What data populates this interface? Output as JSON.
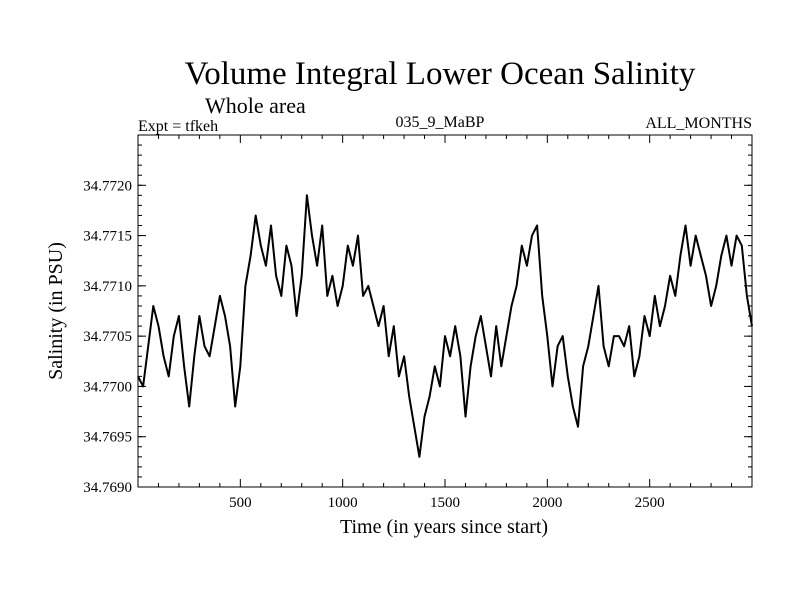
{
  "chart_data": {
    "type": "line",
    "title": "Volume Integral Lower Ocean Salinity",
    "subtitle": "Whole area",
    "left_note": "Expt = tfkeh",
    "center_note": "035_9_MaBP",
    "right_note": "ALL_MONTHS",
    "xlabel": "Time (in years since start)",
    "ylabel": "Salinity (in PSU)",
    "xlim": [
      0,
      3000
    ],
    "ylim": [
      34.769,
      34.7725
    ],
    "xticks": [
      500,
      1000,
      1500,
      2000,
      2500
    ],
    "xtick_labels": [
      "500",
      "1000",
      "1500",
      "2000",
      "2500"
    ],
    "yticks": [
      34.769,
      34.7695,
      34.77,
      34.7705,
      34.771,
      34.7715,
      34.772
    ],
    "ytick_labels": [
      "34.7690",
      "34.7695",
      "34.7700",
      "34.7705",
      "34.7710",
      "34.7715",
      "34.7720"
    ],
    "grid": false,
    "series": [
      {
        "x": [
          0,
          25,
          50,
          75,
          100,
          125,
          150,
          175,
          200,
          225,
          250,
          275,
          300,
          325,
          350,
          375,
          400,
          425,
          450,
          475,
          500,
          525,
          550,
          575,
          600,
          625,
          650,
          675,
          700,
          725,
          750,
          775,
          800,
          825,
          850,
          875,
          900,
          925,
          950,
          975,
          1000,
          1025,
          1050,
          1075,
          1100,
          1125,
          1150,
          1175,
          1200,
          1225,
          1250,
          1275,
          1300,
          1325,
          1350,
          1375,
          1400,
          1425,
          1450,
          1475,
          1500,
          1525,
          1550,
          1575,
          1600,
          1625,
          1650,
          1675,
          1700,
          1725,
          1750,
          1775,
          1800,
          1825,
          1850,
          1875,
          1900,
          1925,
          1950,
          1975,
          2000,
          2025,
          2050,
          2075,
          2100,
          2125,
          2150,
          2175,
          2200,
          2225,
          2250,
          2275,
          2300,
          2325,
          2350,
          2375,
          2400,
          2425,
          2450,
          2475,
          2500,
          2525,
          2550,
          2575,
          2600,
          2625,
          2650,
          2675,
          2700,
          2725,
          2750,
          2775,
          2800,
          2825,
          2850,
          2875,
          2900,
          2925,
          2950,
          2975,
          3000
        ],
        "values": [
          34.7701,
          34.77,
          34.7704,
          34.7708,
          34.7706,
          34.7703,
          34.7701,
          34.7705,
          34.7707,
          34.7702,
          34.7698,
          34.7703,
          34.7707,
          34.7704,
          34.7703,
          34.7706,
          34.7709,
          34.7707,
          34.7704,
          34.7698,
          34.7702,
          34.771,
          34.7713,
          34.7717,
          34.7714,
          34.7712,
          34.7716,
          34.7711,
          34.7709,
          34.7714,
          34.7712,
          34.7707,
          34.7711,
          34.7719,
          34.7715,
          34.7712,
          34.7716,
          34.7709,
          34.7711,
          34.7708,
          34.771,
          34.7714,
          34.7712,
          34.7715,
          34.7709,
          34.771,
          34.7708,
          34.7706,
          34.7708,
          34.7703,
          34.7706,
          34.7701,
          34.7703,
          34.7699,
          34.7696,
          34.7693,
          34.7697,
          34.7699,
          34.7702,
          34.77,
          34.7705,
          34.7703,
          34.7706,
          34.7703,
          34.7697,
          34.7702,
          34.7705,
          34.7707,
          34.7704,
          34.7701,
          34.7706,
          34.7702,
          34.7705,
          34.7708,
          34.771,
          34.7714,
          34.7712,
          34.7715,
          34.7716,
          34.7709,
          34.7705,
          34.77,
          34.7704,
          34.7705,
          34.7701,
          34.7698,
          34.7696,
          34.7702,
          34.7704,
          34.7707,
          34.771,
          34.7704,
          34.7702,
          34.7705,
          34.7705,
          34.7704,
          34.7706,
          34.7701,
          34.7703,
          34.7707,
          34.7705,
          34.7709,
          34.7706,
          34.7708,
          34.7711,
          34.7709,
          34.7713,
          34.7716,
          34.7712,
          34.7715,
          34.7713,
          34.7711,
          34.7708,
          34.771,
          34.7713,
          34.7715,
          34.7712,
          34.7715,
          34.7714,
          34.7709,
          34.7706
        ]
      }
    ]
  }
}
